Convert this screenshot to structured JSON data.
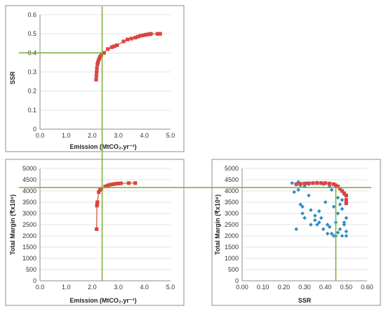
{
  "chart_data": [
    {
      "id": "top-left",
      "type": "line",
      "xlabel": "Emission (MtCO₂.yr⁻¹)",
      "ylabel": "SSR",
      "xlim": [
        0,
        5
      ],
      "ylim": [
        0,
        0.6
      ],
      "xticks": [
        "0.0",
        "1.0",
        "2.0",
        "3.0",
        "4.0",
        "5.0"
      ],
      "yticks": [
        "0",
        "0.1",
        "0.2",
        "0.3",
        "0.4",
        "0.5",
        "0.6"
      ],
      "grid": "horizontal",
      "series": [
        {
          "marker": "square",
          "color": "#d9463e",
          "x": [
            2.15,
            2.16,
            2.17,
            2.18,
            2.2,
            2.22,
            2.24,
            2.27,
            2.3,
            2.35,
            2.45,
            2.6,
            2.75,
            2.85,
            2.95,
            3.2,
            3.35,
            3.5,
            3.65,
            3.75,
            3.85,
            3.95,
            4.05,
            4.12,
            4.2,
            4.25,
            4.5,
            4.6
          ],
          "y": [
            0.26,
            0.28,
            0.3,
            0.32,
            0.34,
            0.35,
            0.36,
            0.37,
            0.38,
            0.39,
            0.4,
            0.42,
            0.43,
            0.435,
            0.44,
            0.46,
            0.47,
            0.475,
            0.48,
            0.485,
            0.49,
            0.492,
            0.495,
            0.497,
            0.498,
            0.5,
            0.5,
            0.5
          ]
        }
      ],
      "guides": {
        "x": 2.38,
        "y": 0.4,
        "color": "#7fb241"
      }
    },
    {
      "id": "bottom-left",
      "type": "line",
      "xlabel": "Emission (MtCO₂.yr⁻¹)",
      "ylabel": "Total Margin (₹x10⁹)",
      "xlim": [
        0,
        5
      ],
      "ylim": [
        0,
        5000
      ],
      "xticks": [
        "0.0",
        "1.0",
        "2.0",
        "3.0",
        "4.0",
        "5.0"
      ],
      "yticks": [
        "0",
        "500",
        "1000",
        "1500",
        "2000",
        "2500",
        "3000",
        "3500",
        "4000",
        "4500",
        "5000"
      ],
      "grid": "horizontal",
      "series": [
        {
          "marker": "square",
          "color": "#d9463e",
          "x": [
            2.17,
            2.18,
            2.19,
            2.2,
            2.25,
            2.3,
            2.35,
            2.5,
            2.6,
            2.7,
            2.8,
            2.9,
            3.0,
            3.1,
            3.4,
            3.65
          ],
          "y": [
            2300,
            3350,
            3420,
            3500,
            3950,
            4050,
            4100,
            4200,
            4250,
            4280,
            4300,
            4320,
            4330,
            4340,
            4350,
            4350
          ]
        }
      ],
      "guides": {
        "x": 2.38,
        "y": 4150,
        "color": "#7fb241"
      }
    },
    {
      "id": "bottom-right",
      "type": "scatter",
      "xlabel": "SSR",
      "ylabel": "Total Margin (₹x10⁹)",
      "xlim": [
        0,
        0.6
      ],
      "ylim": [
        0,
        5000
      ],
      "xticks": [
        "0.00",
        "0.10",
        "0.20",
        "0.30",
        "0.40",
        "0.50",
        "0.60"
      ],
      "yticks": [
        "0",
        "500",
        "1000",
        "1500",
        "2000",
        "2500",
        "3000",
        "3500",
        "4000",
        "4500",
        "5000"
      ],
      "grid": "horizontal",
      "series": [
        {
          "marker": "diamond",
          "color": "#2e8bc9",
          "x": [
            0.24,
            0.25,
            0.26,
            0.27,
            0.28,
            0.29,
            0.3,
            0.31,
            0.32,
            0.33,
            0.34,
            0.35,
            0.36,
            0.37,
            0.38,
            0.39,
            0.4,
            0.41,
            0.42,
            0.43,
            0.44,
            0.45,
            0.46,
            0.47,
            0.48,
            0.49,
            0.5,
            0.26,
            0.28,
            0.3,
            0.33,
            0.35,
            0.37,
            0.39,
            0.42,
            0.44,
            0.46,
            0.48,
            0.5,
            0.27,
            0.32,
            0.36,
            0.41,
            0.45,
            0.49,
            0.29,
            0.38,
            0.43,
            0.47,
            0.5,
            0.48,
            0.49,
            0.5,
            0.46
          ],
          "y": [
            4350,
            3950,
            4300,
            4050,
            4250,
            3300,
            4200,
            4350,
            4300,
            3150,
            4350,
            2900,
            4380,
            2600,
            4350,
            4300,
            3500,
            2500,
            4200,
            4050,
            3300,
            2600,
            3000,
            3400,
            3600,
            3850,
            3500,
            2300,
            3400,
            2800,
            2500,
            2700,
            3100,
            2300,
            2400,
            2000,
            2150,
            2000,
            2200,
            4400,
            3800,
            2500,
            2100,
            2000,
            2500,
            3000,
            2800,
            2100,
            2300,
            2000,
            3200,
            2600,
            2800,
            3700
          ]
        },
        {
          "marker": "square",
          "color": "#d9463e",
          "x": [
            0.26,
            0.28,
            0.3,
            0.32,
            0.34,
            0.36,
            0.38,
            0.4,
            0.42,
            0.44,
            0.45,
            0.46,
            0.47,
            0.48,
            0.49,
            0.5,
            0.5,
            0.5
          ],
          "y": [
            4300,
            4320,
            4330,
            4340,
            4350,
            4350,
            4350,
            4350,
            4330,
            4300,
            4250,
            4200,
            4100,
            4000,
            3900,
            3800,
            3600,
            3450
          ]
        }
      ],
      "guides": {
        "x": 0.45,
        "y": 4150,
        "color": "#7fb241"
      }
    }
  ]
}
